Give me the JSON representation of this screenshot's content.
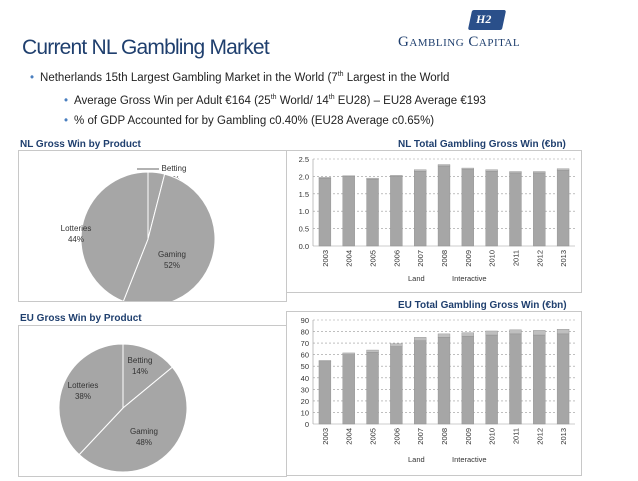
{
  "slide": {
    "title": "Current NL Gambling Market",
    "logo": {
      "mark": "H2",
      "text": "Gambling Capital"
    },
    "bullets": [
      {
        "text_a": "Netherlands 15th Largest Gambling Market in the World (7",
        "sup": "th",
        "text_b": " Largest in the World"
      },
      {
        "text_a": "Average Gross Win per Adult €164 (25",
        "sup": "th",
        "text_b": "  World/ 14",
        "sup2": "th",
        "text_c": " EU28) – EU28 Average €193"
      },
      {
        "text_a": "% of GDP Accounted for by Gambling c0.40% (EU28 Average c0.65%)"
      }
    ]
  },
  "chart_data": [
    {
      "type": "pie",
      "title": "NL Gross Win by Product",
      "slices": [
        {
          "label": "Betting",
          "value": 4,
          "value_label": "4%"
        },
        {
          "label": "Gaming",
          "value": 52,
          "value_label": "52%"
        },
        {
          "label": "Lotteries",
          "value": 44,
          "value_label": "44%"
        }
      ],
      "colors": {
        "fill": "#a6a6a6",
        "stroke": "#ffffff"
      }
    },
    {
      "type": "bar",
      "title": "NL Total Gambling Gross Win (€bn)",
      "categories": [
        "2003",
        "2004",
        "2005",
        "2006",
        "2007",
        "2008",
        "2009",
        "2010",
        "2011",
        "2012",
        "2013"
      ],
      "series": [
        {
          "name": "Land",
          "values": [
            1.95,
            2.0,
            1.92,
            2.0,
            2.15,
            2.3,
            2.2,
            2.15,
            2.1,
            2.1,
            2.18
          ]
        },
        {
          "name": "Interactive",
          "values": [
            0.02,
            0.02,
            0.03,
            0.03,
            0.04,
            0.04,
            0.04,
            0.04,
            0.04,
            0.04,
            0.04
          ]
        }
      ],
      "ylim": [
        0,
        2.5
      ],
      "yticks": [
        "0.0",
        "0.5",
        "1.0",
        "1.5",
        "2.0",
        "2.5"
      ],
      "grid": true,
      "legend": "bottom",
      "colors": {
        "Land": "#a6a6a6",
        "Interactive": "#bfbfbf"
      }
    },
    {
      "type": "pie",
      "title": "EU Gross Win  by Product",
      "slices": [
        {
          "label": "Betting",
          "value": 14,
          "value_label": "14%"
        },
        {
          "label": "Gaming",
          "value": 48,
          "value_label": "48%"
        },
        {
          "label": "Lotteries",
          "value": 38,
          "value_label": "38%"
        }
      ],
      "colors": {
        "fill": "#a6a6a6",
        "stroke": "#ffffff"
      }
    },
    {
      "type": "bar",
      "title": "EU Total Gambling Gross Win (€bn)",
      "categories": [
        "2003",
        "2004",
        "2005",
        "2006",
        "2007",
        "2008",
        "2009",
        "2010",
        "2011",
        "2012",
        "2013"
      ],
      "series": [
        {
          "name": "Land",
          "values": [
            54,
            60,
            62,
            67,
            72,
            75,
            76,
            77,
            78,
            77,
            78
          ]
        },
        {
          "name": "Interactive",
          "values": [
            1,
            1.5,
            2,
            2.5,
            3,
            3,
            3,
            3.5,
            3.5,
            4,
            4
          ]
        }
      ],
      "ylim": [
        0,
        90
      ],
      "yticks": [
        "0",
        "10",
        "20",
        "30",
        "40",
        "50",
        "60",
        "70",
        "80",
        "90"
      ],
      "grid": true,
      "legend": "bottom",
      "colors": {
        "Land": "#a6a6a6",
        "Interactive": "#bfbfbf"
      }
    }
  ]
}
